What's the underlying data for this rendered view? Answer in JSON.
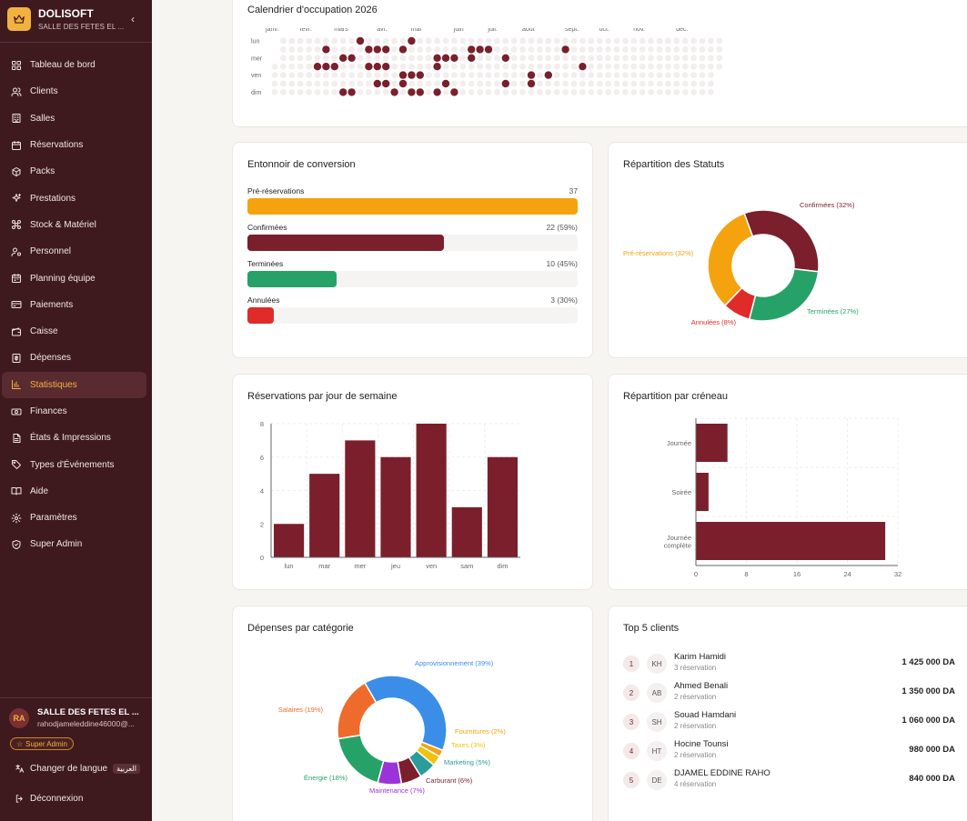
{
  "sidebar": {
    "brand_name": "DOLISOFT",
    "brand_sub": "SALLE DES FETES EL ...",
    "items": [
      {
        "label": "Tableau de bord",
        "icon": "dashboard-icon"
      },
      {
        "label": "Clients",
        "icon": "users-icon"
      },
      {
        "label": "Salles",
        "icon": "building-icon"
      },
      {
        "label": "Réservations",
        "icon": "calendar-icon"
      },
      {
        "label": "Packs",
        "icon": "package-icon"
      },
      {
        "label": "Prestations",
        "icon": "sparkles-icon"
      },
      {
        "label": "Stock & Matériel",
        "icon": "boxes-icon"
      },
      {
        "label": "Personnel",
        "icon": "user-cog-icon"
      },
      {
        "label": "Planning équipe",
        "icon": "calendar-team-icon"
      },
      {
        "label": "Paiements",
        "icon": "credit-card-icon"
      },
      {
        "label": "Caisse",
        "icon": "wallet-icon"
      },
      {
        "label": "Dépenses",
        "icon": "receipt-icon"
      },
      {
        "label": "Statistiques",
        "icon": "bar-chart-icon",
        "active": true
      },
      {
        "label": "Finances",
        "icon": "banknote-icon"
      },
      {
        "label": "États & Impressions",
        "icon": "file-text-icon"
      },
      {
        "label": "Types d'Événements",
        "icon": "tag-icon"
      },
      {
        "label": "Aide",
        "icon": "book-icon"
      },
      {
        "label": "Paramètres",
        "icon": "settings-icon"
      },
      {
        "label": "Super Admin",
        "icon": "shield-icon"
      }
    ],
    "user": {
      "initials": "RA",
      "name": "SALLE DES FETES EL ...",
      "email": "rahodjameleddine46000@...",
      "role": "Super Admin"
    },
    "change_language": "Changer de langue",
    "language_badge": "العربية",
    "logout": "Déconnexion"
  },
  "colors": {
    "sidebar_bg": "#3e1a1e",
    "accent": "#f2b23f",
    "primary": "#7a1f2b",
    "orange": "#f4a30e",
    "green": "#26a269",
    "red": "#e02b2b"
  },
  "heatmap": {
    "title": "Calendrier d'occupation 2026",
    "months": [
      "janv.",
      "févr.",
      "mars",
      "avr.",
      "mai",
      "juin",
      "juil.",
      "août",
      "sept.",
      "oct.",
      "nov.",
      "déc."
    ],
    "day_labels": [
      "lun",
      "mer",
      "ven",
      "dim"
    ]
  },
  "funnel": {
    "title": "Entonnoir de conversion",
    "rows": [
      {
        "label": "Pré-réservations",
        "value": "37",
        "fraction": 1.0,
        "color": "#f4a30e"
      },
      {
        "label": "Confirmées",
        "value": "22 (59%)",
        "fraction": 0.595,
        "color": "#7a1f2b"
      },
      {
        "label": "Terminées",
        "value": "10 (45%)",
        "fraction": 0.27,
        "color": "#26a269"
      },
      {
        "label": "Annulées",
        "value": "3 (30%)",
        "fraction": 0.08,
        "color": "#e02b2b"
      }
    ]
  },
  "chart_data": [
    {
      "type": "pie",
      "title": "Répartition des Statuts",
      "labels": [
        "Confirmées (32%)",
        "Terminées (27%)",
        "Annulées (8%)",
        "Pré-réservations (32%)"
      ],
      "values": [
        32,
        27,
        8,
        32
      ],
      "colors": [
        "#7a1f2b",
        "#26a269",
        "#e02b2b",
        "#f4a30e"
      ]
    },
    {
      "type": "bar",
      "title": "Réservations par jour de semaine",
      "categories": [
        "lun",
        "mar",
        "mer",
        "jeu",
        "ven",
        "sam",
        "dim"
      ],
      "values": [
        2,
        5,
        7,
        6,
        8,
        3,
        6
      ],
      "ylim": [
        0,
        8
      ],
      "yticks": [
        "0",
        "2",
        "4",
        "6",
        "8"
      ],
      "grid": true
    },
    {
      "type": "bar",
      "orientation": "horizontal",
      "title": "Répartition par créneau",
      "categories": [
        "Journée",
        "Soirée",
        "Journée complète"
      ],
      "values": [
        5,
        2,
        30
      ],
      "xlim": [
        0,
        32
      ],
      "xticks": [
        "0",
        "8",
        "16",
        "24",
        "32"
      ],
      "grid": true
    },
    {
      "type": "pie",
      "title": "Dépenses par catégorie",
      "labels": [
        "Approvisionnement (39%)",
        "Fournitures (2%)",
        "Taxes (3%)",
        "Marketing (5%)",
        "Carburant (6%)",
        "Maintenance (7%)",
        "Énergie (18%)",
        "Salaires (19%)"
      ],
      "values": [
        39,
        2,
        3,
        5,
        6,
        7,
        18,
        19
      ],
      "colors": [
        "#3b8ee8",
        "#f4a30e",
        "#f2c20f",
        "#2a9d9a",
        "#7a1f2b",
        "#9b34d8",
        "#26a269",
        "#ee6b2c"
      ]
    }
  ],
  "top_clients": {
    "title": "Top 5 clients",
    "rows": [
      {
        "rank": "1",
        "initials": "KH",
        "name": "Karim Hamidi",
        "reservations": "3 réservation",
        "amount": "1 425 000 DA"
      },
      {
        "rank": "2",
        "initials": "AB",
        "name": "Ahmed Benali",
        "reservations": "2 réservation",
        "amount": "1 350 000 DA"
      },
      {
        "rank": "3",
        "initials": "SH",
        "name": "Souad Hamdani",
        "reservations": "2 réservation",
        "amount": "1 060 000 DA"
      },
      {
        "rank": "4",
        "initials": "HT",
        "name": "Hocine Tounsi",
        "reservations": "2 réservation",
        "amount": "980 000 DA"
      },
      {
        "rank": "5",
        "initials": "DE",
        "name": "DJAMEL EDDINE RAHO",
        "reservations": "4 réservation",
        "amount": "840 000 DA"
      }
    ]
  }
}
